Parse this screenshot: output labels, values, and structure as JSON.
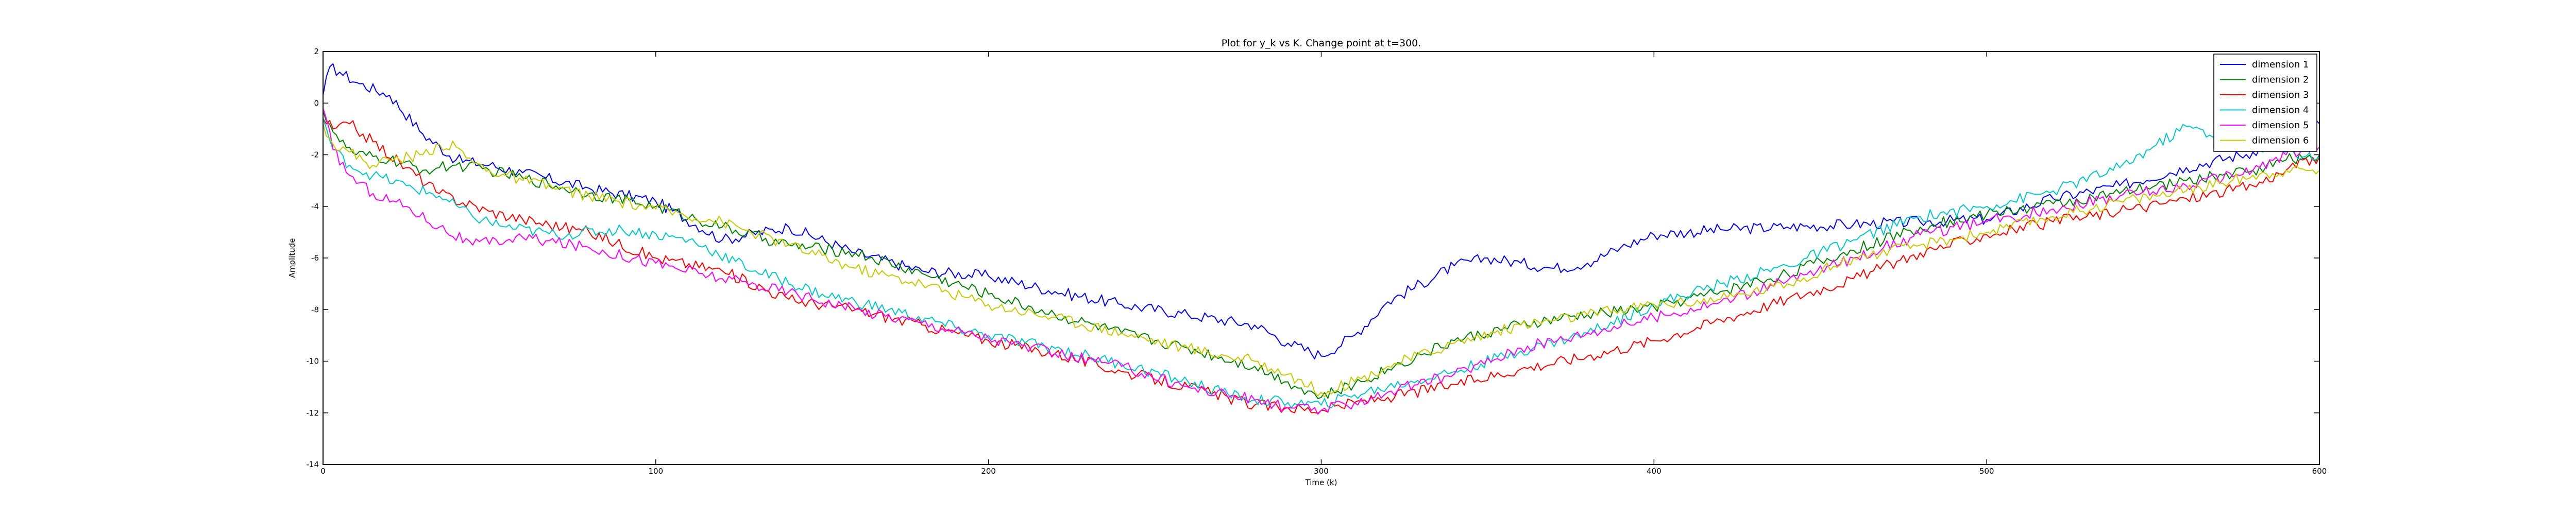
{
  "chart_data": {
    "type": "line",
    "title": "Plot for y_k vs K.  Change point at t=300.",
    "xlabel": "Time (k)",
    "ylabel": "Amplitude",
    "xlim": [
      0,
      600
    ],
    "ylim": [
      -14,
      2
    ],
    "xticks": [
      0,
      100,
      200,
      300,
      400,
      500,
      600
    ],
    "yticks": [
      -14,
      -12,
      -10,
      -8,
      -6,
      -4,
      -2,
      0,
      2
    ],
    "grid": false,
    "legend_position": "top-right",
    "series": [
      {
        "name": "dimension 1",
        "color": "#0000ff",
        "x": [
          0,
          2,
          5,
          10,
          20,
          30,
          40,
          50,
          60,
          80,
          100,
          120,
          140,
          160,
          180,
          200,
          220,
          240,
          260,
          280,
          290,
          300,
          310,
          320,
          340,
          350,
          360,
          370,
          380,
          390,
          400,
          420,
          440,
          460,
          480,
          500,
          520,
          540,
          560,
          580,
          590,
          600
        ],
        "y": [
          0.3,
          1.4,
          1.2,
          0.8,
          0.3,
          -1.2,
          -2.2,
          -2.4,
          -2.7,
          -3.3,
          -3.8,
          -5.3,
          -4.8,
          -5.8,
          -6.5,
          -6.7,
          -7.3,
          -7.8,
          -8.2,
          -8.6,
          -9.3,
          -9.8,
          -9.0,
          -7.7,
          -6.3,
          -6.0,
          -6.2,
          -6.4,
          -6.2,
          -5.6,
          -5.1,
          -4.9,
          -4.8,
          -4.7,
          -4.6,
          -4.5,
          -3.7,
          -3.2,
          -2.5,
          -1.9,
          -1.3,
          -0.8
        ]
      },
      {
        "name": "dimension 2",
        "color": "#008000",
        "x": [
          0,
          5,
          10,
          20,
          30,
          40,
          50,
          60,
          80,
          100,
          120,
          140,
          160,
          180,
          200,
          220,
          240,
          260,
          280,
          290,
          300,
          310,
          320,
          340,
          360,
          380,
          400,
          420,
          440,
          460,
          480,
          500,
          520,
          540,
          560,
          580,
          590,
          600
        ],
        "y": [
          -0.3,
          -1.5,
          -2.0,
          -2.2,
          -2.6,
          -2.4,
          -2.6,
          -2.9,
          -3.5,
          -4.0,
          -4.8,
          -5.5,
          -5.8,
          -6.6,
          -7.4,
          -8.2,
          -8.9,
          -9.5,
          -10.2,
          -10.8,
          -11.4,
          -10.9,
          -10.3,
          -9.2,
          -8.6,
          -8.2,
          -7.9,
          -7.3,
          -6.6,
          -5.7,
          -4.8,
          -4.3,
          -3.9,
          -3.5,
          -3.0,
          -2.6,
          -2.2,
          -2.0
        ]
      },
      {
        "name": "dimension 3",
        "color": "#ff0000",
        "x": [
          0,
          3,
          8,
          15,
          25,
          35,
          50,
          60,
          80,
          100,
          120,
          140,
          160,
          180,
          200,
          220,
          240,
          260,
          280,
          290,
          300,
          310,
          320,
          340,
          360,
          380,
          400,
          420,
          440,
          460,
          480,
          500,
          520,
          540,
          560,
          580,
          590,
          600
        ],
        "y": [
          -0.6,
          -1.0,
          -0.8,
          -1.5,
          -2.5,
          -3.5,
          -4.2,
          -4.5,
          -5.0,
          -6.0,
          -6.5,
          -7.6,
          -8.0,
          -8.6,
          -9.2,
          -9.7,
          -10.4,
          -11.0,
          -11.7,
          -11.8,
          -11.9,
          -11.6,
          -11.4,
          -10.9,
          -10.3,
          -9.8,
          -9.2,
          -8.4,
          -7.6,
          -6.8,
          -5.8,
          -5.1,
          -4.6,
          -4.2,
          -3.7,
          -3.2,
          -2.6,
          -2.1
        ]
      },
      {
        "name": "dimension 4",
        "color": "#00c8c8",
        "x": [
          0,
          3,
          8,
          15,
          25,
          35,
          45,
          55,
          70,
          90,
          110,
          130,
          150,
          170,
          190,
          200,
          220,
          240,
          260,
          270,
          280,
          290,
          300,
          310,
          320,
          340,
          360,
          380,
          400,
          420,
          440,
          460,
          480,
          500,
          520,
          540,
          550,
          560,
          570,
          580,
          590,
          600
        ],
        "y": [
          -0.6,
          -1.8,
          -2.4,
          -2.8,
          -3.2,
          -3.6,
          -4.4,
          -4.8,
          -5.1,
          -4.9,
          -5.3,
          -6.5,
          -7.4,
          -8.0,
          -8.7,
          -9.0,
          -9.5,
          -10.1,
          -10.8,
          -11.2,
          -11.5,
          -11.6,
          -11.7,
          -11.3,
          -11.0,
          -10.4,
          -9.6,
          -8.9,
          -7.8,
          -7.0,
          -6.3,
          -5.3,
          -4.4,
          -4.0,
          -3.4,
          -2.5,
          -1.7,
          -0.9,
          -1.3,
          -1.6,
          -1.9,
          -2.1
        ]
      },
      {
        "name": "dimension 5",
        "color": "#ff00ff",
        "x": [
          0,
          3,
          8,
          15,
          25,
          35,
          45,
          60,
          80,
          100,
          120,
          140,
          160,
          180,
          200,
          220,
          240,
          260,
          280,
          290,
          300,
          310,
          320,
          340,
          360,
          380,
          400,
          420,
          440,
          460,
          480,
          500,
          520,
          540,
          560,
          580,
          590,
          600
        ],
        "y": [
          -0.2,
          -1.8,
          -2.8,
          -3.5,
          -4.0,
          -4.8,
          -5.5,
          -5.2,
          -5.6,
          -6.2,
          -6.8,
          -7.3,
          -8.0,
          -8.5,
          -9.1,
          -9.7,
          -10.2,
          -11.0,
          -11.5,
          -11.8,
          -11.9,
          -11.6,
          -11.2,
          -10.5,
          -9.5,
          -8.9,
          -8.3,
          -7.7,
          -6.9,
          -6.0,
          -5.1,
          -4.6,
          -4.1,
          -3.6,
          -3.2,
          -2.6,
          -2.0,
          -1.7
        ]
      },
      {
        "name": "dimension 6",
        "color": "#c8c800",
        "x": [
          0,
          3,
          8,
          15,
          20,
          30,
          35,
          40,
          45,
          50,
          60,
          80,
          100,
          120,
          140,
          160,
          180,
          200,
          220,
          240,
          260,
          280,
          290,
          300,
          310,
          320,
          340,
          360,
          380,
          400,
          420,
          440,
          460,
          480,
          500,
          520,
          540,
          560,
          570,
          580,
          590,
          600
        ],
        "y": [
          -0.8,
          -1.6,
          -1.9,
          -2.4,
          -2.2,
          -2.0,
          -1.6,
          -1.7,
          -2.3,
          -2.6,
          -3.0,
          -3.6,
          -4.1,
          -4.6,
          -5.5,
          -6.4,
          -7.0,
          -7.8,
          -8.3,
          -8.9,
          -9.5,
          -10.0,
          -10.5,
          -11.2,
          -10.8,
          -10.2,
          -9.3,
          -8.6,
          -8.2,
          -7.8,
          -7.6,
          -7.0,
          -6.0,
          -5.5,
          -5.0,
          -4.4,
          -3.8,
          -3.4,
          -3.1,
          -2.8,
          -2.6,
          -2.6
        ]
      }
    ]
  }
}
